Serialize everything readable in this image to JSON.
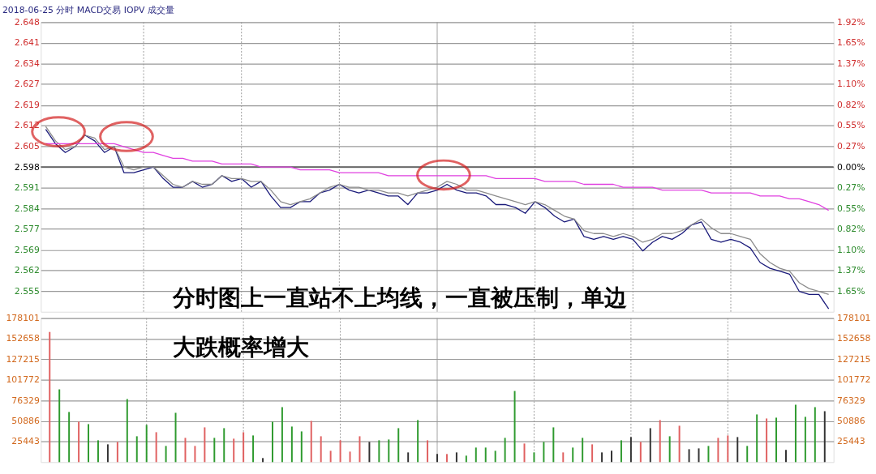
{
  "chart_data": [
    {
      "type": "line",
      "title": "2018-06-25 分时 MACD交易 IOPV 成交量",
      "categories": [
        null,
        null,
        null,
        null,
        null,
        null,
        null,
        null,
        null,
        null,
        null,
        null,
        null,
        null,
        null,
        null,
        null,
        null,
        null,
        null,
        null,
        null,
        null,
        null,
        null,
        null,
        null,
        null,
        null,
        null,
        null,
        null,
        null,
        null,
        null,
        null,
        null,
        null,
        null,
        null,
        null,
        null,
        null,
        null,
        null,
        null,
        null,
        null,
        null,
        null,
        null,
        null,
        null,
        null,
        null,
        null,
        null,
        null,
        null,
        null,
        null,
        null,
        null,
        null,
        null,
        null,
        null,
        null,
        null,
        null,
        null,
        null,
        null,
        null,
        null,
        null,
        null,
        null,
        null,
        null,
        null
      ],
      "series": [
        {
          "color": "#1a1a7a",
          "values": [
            2.611,
            2.606,
            2.603,
            2.605,
            2.609,
            2.607,
            2.603,
            2.605,
            2.596,
            2.596,
            2.597,
            2.598,
            2.594,
            2.591,
            2.591,
            2.593,
            2.591,
            2.592,
            2.595,
            2.593,
            2.594,
            2.591,
            2.593,
            2.588,
            2.584,
            2.584,
            2.586,
            2.586,
            2.589,
            2.59,
            2.592,
            2.59,
            2.589,
            2.59,
            2.589,
            2.588,
            2.588,
            2.585,
            2.589,
            2.589,
            2.59,
            2.592,
            2.59,
            2.589,
            2.589,
            2.588,
            2.585,
            2.585,
            2.584,
            2.582,
            2.586,
            2.584,
            2.581,
            2.579,
            2.58,
            2.574,
            2.573,
            2.574,
            2.573,
            2.574,
            2.573,
            2.569,
            2.572,
            2.574,
            2.573,
            2.575,
            2.578,
            2.579,
            2.573,
            2.572,
            2.573,
            2.572,
            2.57,
            2.565,
            2.563,
            2.562,
            2.561,
            2.555,
            2.554,
            2.554,
            2.549
          ]
        },
        {
          "color": "#8c8c8c",
          "values": [
            2.612,
            2.607,
            2.604,
            2.605,
            2.609,
            2.608,
            2.604,
            2.605,
            2.598,
            2.597,
            2.598,
            2.598,
            2.595,
            2.592,
            2.591,
            2.593,
            2.592,
            2.592,
            2.595,
            2.594,
            2.594,
            2.593,
            2.593,
            2.59,
            2.586,
            2.585,
            2.586,
            2.587,
            2.589,
            2.591,
            2.592,
            2.591,
            2.591,
            2.59,
            2.59,
            2.589,
            2.589,
            2.588,
            2.589,
            2.59,
            2.591,
            2.593,
            2.592,
            2.59,
            2.59,
            2.589,
            2.588,
            2.587,
            2.586,
            2.585,
            2.586,
            2.585,
            2.583,
            2.581,
            2.58,
            2.576,
            2.575,
            2.575,
            2.574,
            2.575,
            2.574,
            2.572,
            2.573,
            2.575,
            2.575,
            2.576,
            2.578,
            2.58,
            2.577,
            2.575,
            2.575,
            2.574,
            2.573,
            2.568,
            2.565,
            2.563,
            2.562,
            2.558,
            2.556,
            2.555,
            2.554
          ]
        },
        {
          "color": "#e040e0",
          "values": [
            2.606,
            2.606,
            2.606,
            2.606,
            2.606,
            2.606,
            2.606,
            2.606,
            2.605,
            2.604,
            2.603,
            2.603,
            2.602,
            2.601,
            2.601,
            2.6,
            2.6,
            2.6,
            2.599,
            2.599,
            2.599,
            2.599,
            2.598,
            2.598,
            2.598,
            2.598,
            2.597,
            2.597,
            2.597,
            2.597,
            2.596,
            2.596,
            2.596,
            2.596,
            2.596,
            2.595,
            2.595,
            2.595,
            2.595,
            2.595,
            2.595,
            2.595,
            2.595,
            2.595,
            2.595,
            2.595,
            2.594,
            2.594,
            2.594,
            2.594,
            2.594,
            2.593,
            2.593,
            2.593,
            2.593,
            2.592,
            2.592,
            2.592,
            2.592,
            2.591,
            2.591,
            2.591,
            2.591,
            2.59,
            2.59,
            2.59,
            2.59,
            2.59,
            2.589,
            2.589,
            2.589,
            2.589,
            2.589,
            2.588,
            2.588,
            2.588,
            2.587,
            2.587,
            2.586,
            2.585,
            2.583
          ]
        }
      ],
      "ylim": [
        2.548,
        2.648
      ],
      "yticks": [
        2.648,
        {
          "value": 2.6409,
          "label": "2.641"
        },
        {
          "value": 2.6337,
          "label": "2.634"
        },
        {
          "value": 2.6266,
          "label": "2.627"
        },
        {
          "value": 2.6194,
          "label": "2.619"
        },
        {
          "value": 2.6123,
          "label": "2.612"
        },
        {
          "value": 2.6051,
          "label": "2.605"
        },
        2.598,
        {
          "value": 2.5909,
          "label": "2.591"
        },
        {
          "value": 2.5837,
          "label": "2.584"
        },
        {
          "value": 2.5766,
          "label": "2.577"
        },
        {
          "value": 2.5694,
          "label": "2.569"
        },
        {
          "value": 2.5623,
          "label": "2.562"
        },
        {
          "value": 2.5551,
          "label": "2.555"
        }
      ],
      "y2lim": [
        -1.92,
        1.92
      ],
      "y2ticks": [
        {
          "value": 1.92,
          "label": "1.92%"
        },
        {
          "value": 1.6457,
          "label": "1.65%"
        },
        {
          "value": 1.3714,
          "label": "1.37%"
        },
        {
          "value": 1.0971,
          "label": "1.10%"
        },
        {
          "value": 0.8229,
          "label": "0.82%"
        },
        {
          "value": 0.5486,
          "label": "0.55%"
        },
        {
          "value": 0.2743,
          "label": "0.27%"
        },
        {
          "value": 0,
          "label": "0.00%"
        },
        {
          "value": -0.2743,
          "label": "0.27%"
        },
        {
          "value": -0.5486,
          "label": "0.55%"
        },
        {
          "value": -0.8229,
          "label": "0.82%"
        },
        {
          "value": -1.0971,
          "label": "1.10%"
        },
        {
          "value": -1.3714,
          "label": "1.37%"
        },
        {
          "value": -1.6457,
          "label": "1.65%"
        }
      ],
      "ref_lines": [
        {
          "axis": "y",
          "value": 2.598,
          "color": "#555555"
        }
      ],
      "annotations": [
        "分时图上一直站不上均线，一直被压制，单边"
      ],
      "grid": true,
      "tick_labels": "y"
    },
    {
      "type": "bar",
      "categories": [
        null,
        null,
        null,
        null,
        null,
        null,
        null,
        null,
        null,
        null,
        null,
        null,
        null,
        null,
        null,
        null,
        null,
        null,
        null,
        null,
        null,
        null,
        null,
        null,
        null,
        null,
        null,
        null,
        null,
        null,
        null,
        null,
        null,
        null,
        null,
        null,
        null,
        null,
        null,
        null,
        null,
        null,
        null,
        null,
        null,
        null,
        null,
        null,
        null,
        null,
        null,
        null,
        null,
        null,
        null,
        null,
        null,
        null,
        null,
        null,
        null,
        null,
        null,
        null,
        null,
        null,
        null,
        null,
        null,
        null,
        null,
        null,
        null,
        null,
        null,
        null,
        null,
        null,
        null,
        null,
        null
      ],
      "values": [
        161000,
        90000,
        62000,
        50000,
        47000,
        27000,
        22000,
        25000,
        78000,
        32000,
        46000,
        37000,
        20000,
        61000,
        30000,
        20000,
        43000,
        30000,
        42000,
        29000,
        37000,
        33000,
        5000,
        50000,
        68000,
        44000,
        38000,
        51000,
        32000,
        14000,
        27000,
        13000,
        32000,
        25000,
        27000,
        28000,
        42000,
        12000,
        52000,
        27000,
        10000,
        10000,
        12000,
        8000,
        18000,
        18000,
        14000,
        30000,
        88000,
        23000,
        12000,
        25000,
        43000,
        12000,
        18000,
        30000,
        22000,
        12000,
        14000,
        27000,
        31000,
        25000,
        42000,
        52000,
        32000,
        45000,
        16000,
        17000,
        20000,
        30000,
        33000,
        31000,
        20000,
        59000,
        54000,
        55000,
        15000,
        71000,
        56000,
        68000,
        63000
      ],
      "colors": [
        "#e06060",
        "#2e9a2e",
        "#2e9a2e",
        "#e06060",
        "#2e9a2e",
        "#2e9a2e",
        "#333333",
        "#e06060",
        "#2e9a2e",
        "#2e9a2e",
        "#2e9a2e",
        "#e06060",
        "#2e9a2e",
        "#2e9a2e",
        "#e06060",
        "#e06060",
        "#e06060",
        "#2e9a2e",
        "#2e9a2e",
        "#e06060",
        "#e06060",
        "#2e9a2e",
        "#333333",
        "#2e9a2e",
        "#2e9a2e",
        "#2e9a2e",
        "#2e9a2e",
        "#e06060",
        "#e06060",
        "#e06060",
        "#e06060",
        "#e06060",
        "#e06060",
        "#333333",
        "#2e9a2e",
        "#2e9a2e",
        "#2e9a2e",
        "#333333",
        "#2e9a2e",
        "#e06060",
        "#333333",
        "#e06060",
        "#333333",
        "#2e9a2e",
        "#2e9a2e",
        "#2e9a2e",
        "#2e9a2e",
        "#2e9a2e",
        "#2e9a2e",
        "#e06060",
        "#2e9a2e",
        "#2e9a2e",
        "#2e9a2e",
        "#e06060",
        "#2e9a2e",
        "#2e9a2e",
        "#e06060",
        "#333333",
        "#333333",
        "#2e9a2e",
        "#333333",
        "#e06060",
        "#333333",
        "#e06060",
        "#2e9a2e",
        "#e06060",
        "#333333",
        "#333333",
        "#2e9a2e",
        "#e06060",
        "#e06060",
        "#333333",
        "#2e9a2e",
        "#2e9a2e",
        "#e06060",
        "#2e9a2e",
        "#333333",
        "#2e9a2e",
        "#2e9a2e",
        "#2e9a2e",
        "#333333"
      ],
      "ylim": [
        0,
        178101
      ],
      "yticks": [
        25443,
        50886,
        76329,
        101772,
        127215,
        152658,
        178101
      ],
      "y2lim": [
        0,
        178101
      ],
      "y2ticks": [
        25443,
        50886,
        76329,
        101772,
        127215,
        152658,
        178101
      ],
      "annotations": [
        "大跌概率增大"
      ],
      "grid": true,
      "tick_labels": "y"
    }
  ]
}
